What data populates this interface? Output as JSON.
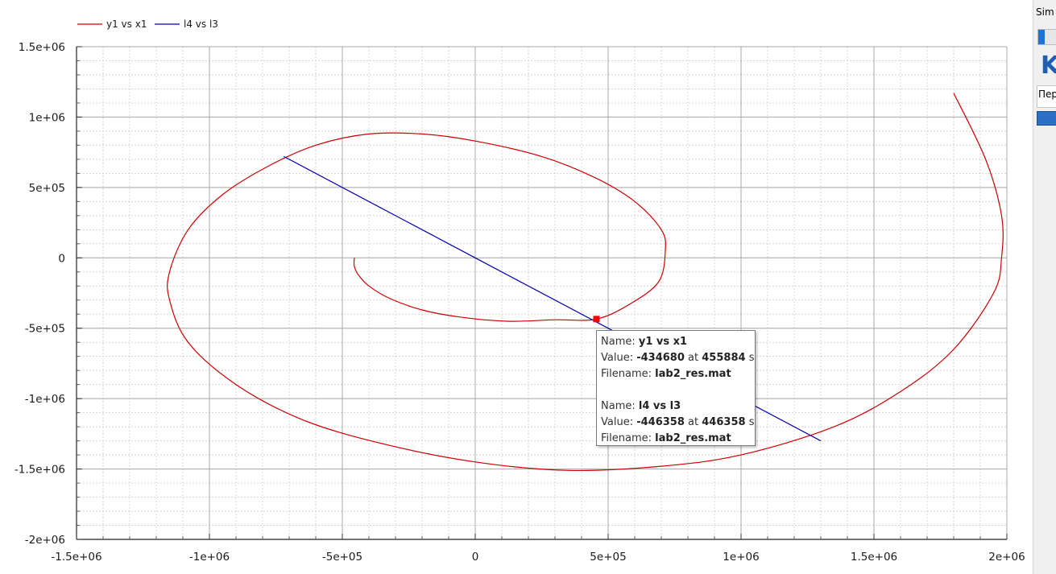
{
  "chart_data": {
    "type": "line",
    "title": "",
    "xlabel": "",
    "ylabel": "",
    "xlim": [
      -1500000,
      2000000
    ],
    "ylim": [
      -2000000,
      1500000
    ],
    "x_ticks": [
      -1500000,
      -1000000,
      -500000,
      0,
      500000,
      1000000,
      1500000,
      2000000
    ],
    "y_ticks": [
      -2000000,
      -1500000,
      -1000000,
      -500000,
      0,
      500000,
      1000000,
      1500000
    ],
    "x_tick_labels": [
      "-1.5e+06",
      "-1e+06",
      "-5e+05",
      "0",
      "5e+05",
      "1e+06",
      "1.5e+06",
      "2e+06"
    ],
    "y_tick_labels": [
      "-2e+06",
      "-1.5e+06",
      "-1e+06",
      "-5e+05",
      "0",
      "5e+05",
      "1e+06",
      "1.5e+06"
    ],
    "grid": true,
    "minor_grid": true,
    "legend_position": "top-left",
    "series": [
      {
        "name": "y1 vs x1",
        "color": "#cc0000",
        "points": [
          [
            -455000,
            0
          ],
          [
            -455000,
            -60000
          ],
          [
            -440000,
            -120000
          ],
          [
            -400000,
            -200000
          ],
          [
            -320000,
            -290000
          ],
          [
            -200000,
            -370000
          ],
          [
            -60000,
            -420000
          ],
          [
            120000,
            -450000
          ],
          [
            300000,
            -440000
          ],
          [
            456000,
            -435000
          ],
          [
            580000,
            -330000
          ],
          [
            690000,
            -170000
          ],
          [
            715000,
            50000
          ],
          [
            700000,
            200000
          ],
          [
            600000,
            400000
          ],
          [
            450000,
            570000
          ],
          [
            250000,
            720000
          ],
          [
            0,
            830000
          ],
          [
            -200000,
            880000
          ],
          [
            -400000,
            880000
          ],
          [
            -600000,
            800000
          ],
          [
            -780000,
            650000
          ],
          [
            -950000,
            450000
          ],
          [
            -1080000,
            200000
          ],
          [
            -1150000,
            -100000
          ],
          [
            -1150000,
            -300000
          ],
          [
            -1080000,
            -600000
          ],
          [
            -900000,
            -900000
          ],
          [
            -650000,
            -1150000
          ],
          [
            -350000,
            -1320000
          ],
          [
            0,
            -1450000
          ],
          [
            350000,
            -1510000
          ],
          [
            700000,
            -1480000
          ],
          [
            1000000,
            -1400000
          ],
          [
            1350000,
            -1200000
          ],
          [
            1600000,
            -950000
          ],
          [
            1800000,
            -650000
          ],
          [
            1950000,
            -250000
          ],
          [
            1980000,
            0
          ],
          [
            1980000,
            300000
          ],
          [
            1920000,
            700000
          ],
          [
            1800000,
            1170000
          ]
        ]
      },
      {
        "name": "l4 vs l3",
        "color": "#0000aa",
        "points": [
          [
            -720000,
            720000
          ],
          [
            0,
            0
          ],
          [
            1300000,
            -1300000
          ]
        ]
      }
    ],
    "marker": {
      "x": 456000,
      "y": -435000,
      "color": "#ff0000"
    }
  },
  "legend": [
    {
      "label": "y1 vs x1",
      "color": "#cc0000"
    },
    {
      "label": "l4 vs l3",
      "color": "#0000aa"
    }
  ],
  "tooltip": {
    "name_label": "Name:",
    "value_label": "Value:",
    "at_label": "at",
    "unit": "s",
    "filename_label": "Filename:",
    "entries": [
      {
        "name": "y1 vs x1",
        "value": "-434680",
        "at": "455884",
        "filename": "lab2_res.mat"
      },
      {
        "name": "l4 vs l3",
        "value": "-446358",
        "at": "446358",
        "filename": "lab2_res.mat"
      }
    ]
  },
  "side_panel": {
    "tab_label": "Sim",
    "logo_text": "K",
    "field_text": "Пер",
    "progress": 0.25
  }
}
